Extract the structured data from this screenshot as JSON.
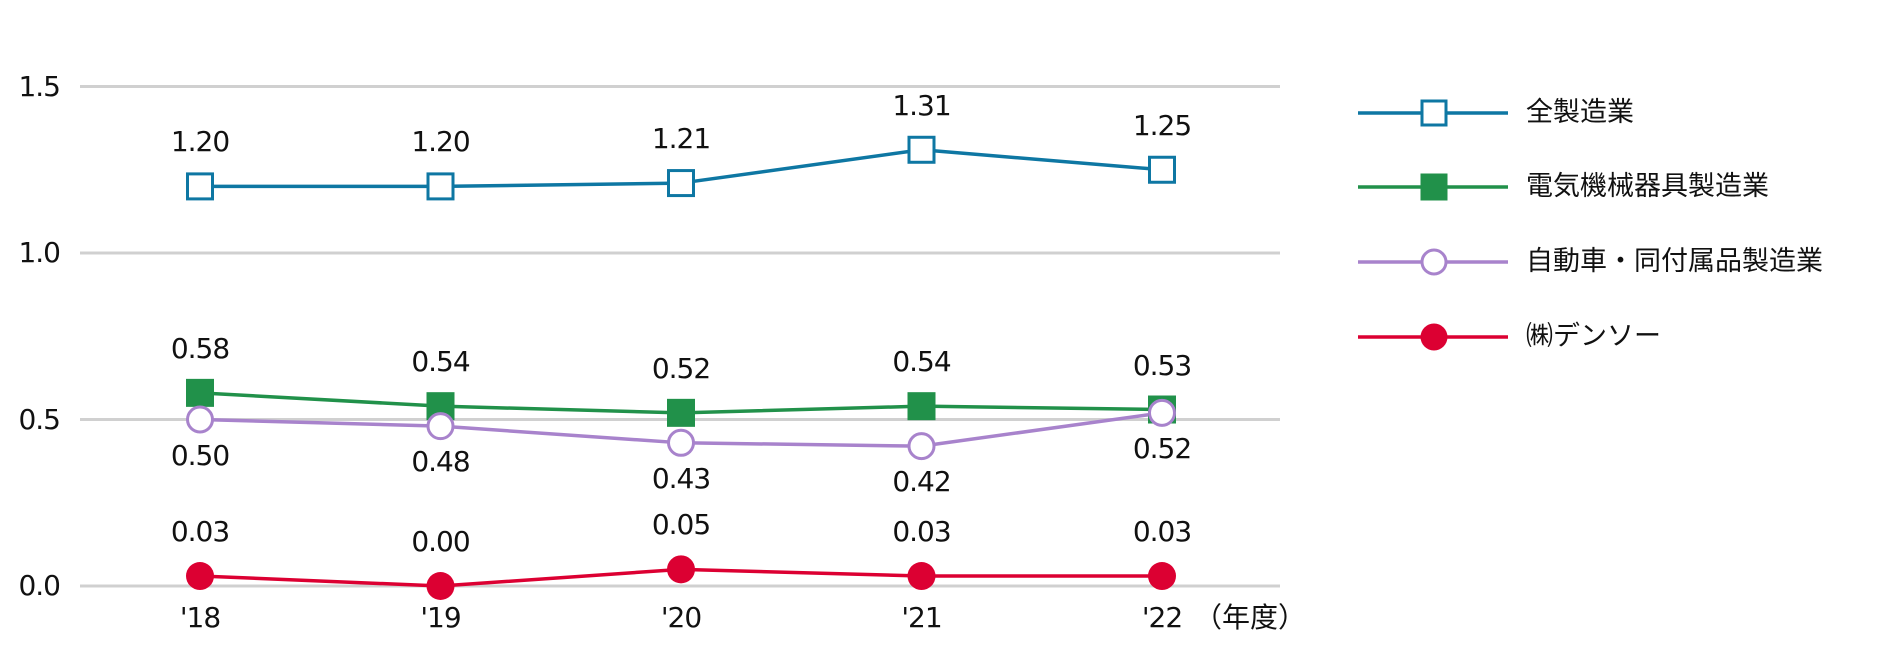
{
  "chart_data": {
    "type": "line",
    "title": "",
    "xlabel": "（年度）",
    "ylabel": "",
    "categories": [
      "'18",
      "'19",
      "'20",
      "'21",
      "'22"
    ],
    "ylim": [
      0.0,
      1.5
    ],
    "yticks": [
      "0.0",
      "0.5",
      "1.0",
      "1.5"
    ],
    "ytick_values": [
      0.0,
      0.5,
      1.0,
      1.5
    ],
    "grid": true,
    "legend_position": "right",
    "series": [
      {
        "name": "全製造業",
        "color": "#0e77a3",
        "marker": "square-open",
        "values": [
          1.2,
          1.2,
          1.21,
          1.31,
          1.25
        ],
        "labels": [
          "1.20",
          "1.20",
          "1.21",
          "1.31",
          "1.25"
        ],
        "label_pos": "above"
      },
      {
        "name": "電気機械器具製造業",
        "color": "#21914a",
        "marker": "square-filled",
        "values": [
          0.58,
          0.54,
          0.52,
          0.54,
          0.53
        ],
        "labels": [
          "0.58",
          "0.54",
          "0.52",
          "0.54",
          "0.53"
        ],
        "label_pos": "above"
      },
      {
        "name": "自動車・同付属品製造業",
        "color": "#a883cc",
        "marker": "circle-open",
        "values": [
          0.5,
          0.48,
          0.43,
          0.42,
          0.52
        ],
        "labels": [
          "0.50",
          "0.48",
          "0.43",
          "0.42",
          "0.52"
        ],
        "label_pos": "below"
      },
      {
        "name": "㈱デンソー",
        "color": "#dc0032",
        "marker": "circle-filled",
        "values": [
          0.03,
          0.0,
          0.05,
          0.03,
          0.03
        ],
        "labels": [
          "0.03",
          "0.00",
          "0.05",
          "0.03",
          "0.03"
        ],
        "label_pos": "above"
      }
    ]
  },
  "axis": {
    "x_unit": "（年度）",
    "gridline_color": "#d0d0d0"
  }
}
